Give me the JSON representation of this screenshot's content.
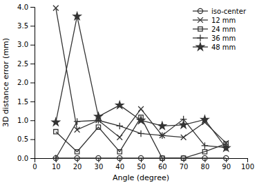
{
  "chart_data": {
    "type": "line",
    "x": [
      10,
      20,
      30,
      40,
      50,
      60,
      70,
      80,
      90
    ],
    "series": [
      {
        "name": "iso-center",
        "color": "#333333",
        "marker": "circle-open",
        "values": [
          0.0,
          0.0,
          0.0,
          0.0,
          0.0,
          0.0,
          0.0,
          0.0,
          0.0
        ]
      },
      {
        "name": "12 mm",
        "color": "#333333",
        "marker": "x",
        "values": [
          3.97,
          0.75,
          1.0,
          0.55,
          1.3,
          0.6,
          0.55,
          0.95,
          0.4
        ]
      },
      {
        "name": "24 mm",
        "color": "#333333",
        "marker": "square-open",
        "values": [
          0.7,
          0.17,
          0.82,
          0.17,
          1.08,
          0.0,
          0.0,
          0.17,
          0.38
        ]
      },
      {
        "name": "36 mm",
        "color": "#333333",
        "marker": "plus",
        "values": [
          0.0,
          0.97,
          1.0,
          0.85,
          0.65,
          0.6,
          1.03,
          0.33,
          0.28
        ]
      },
      {
        "name": "48 mm",
        "color": "#333333",
        "marker": "star",
        "values": [
          0.95,
          3.75,
          1.1,
          1.4,
          1.0,
          0.85,
          0.88,
          1.02,
          0.27
        ]
      }
    ],
    "xlabel": "Angle (degree)",
    "ylabel": "3D distance error (mm)",
    "xlim": [
      0,
      100
    ],
    "ylim": [
      0,
      4.0
    ],
    "xticks": [
      0,
      10,
      20,
      30,
      40,
      50,
      60,
      70,
      80,
      90,
      100
    ],
    "yticks": [
      {
        "value": 0.0,
        "label": "0.0"
      },
      0.5,
      {
        "value": 1.0,
        "label": "1.0"
      },
      1.5,
      {
        "value": 2.0,
        "label": "2.0"
      },
      2.5,
      {
        "value": 3.0,
        "label": "3.0"
      },
      3.5,
      {
        "value": 4.0,
        "label": "4.0"
      }
    ],
    "legend": "upper right",
    "grid": false
  }
}
